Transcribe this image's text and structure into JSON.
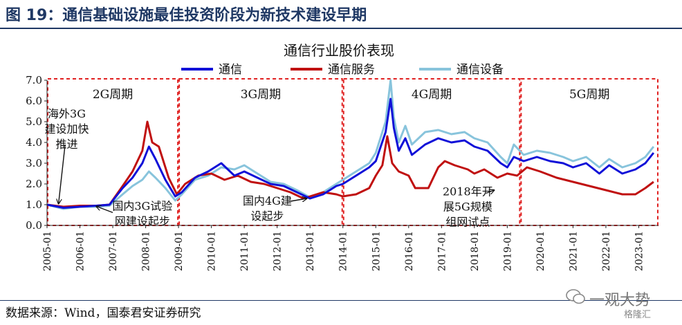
{
  "figure_title": "图 19：通信基础设施最佳投资阶段为新技术建设早期",
  "source": "数据来源：Wind，国泰君安证券研究",
  "watermark": {
    "text": "一观大势",
    "sub": "格隆汇"
  },
  "colors": {
    "blue": "#1010d8",
    "red": "#c01010",
    "light": "#88c4dc",
    "box": "#e02020",
    "header": "#1f3864"
  },
  "chart_data": {
    "type": "line",
    "title": "通信行业股价表现",
    "xlabel": "",
    "ylabel": "",
    "ylim": [
      0,
      7
    ],
    "yticks": [
      "0.0",
      "1.0",
      "2.0",
      "3.0",
      "4.0",
      "5.0",
      "6.0",
      "7.0"
    ],
    "xticks": [
      "2005-01",
      "2006-01",
      "2007-01",
      "2008-01",
      "2009-01",
      "2010-01",
      "2011-01",
      "2012-01",
      "2013-01",
      "2014-01",
      "2015-01",
      "2016-01",
      "2017-01",
      "2018-01",
      "2019-01",
      "2020-01",
      "2021-01",
      "2022-01",
      "2023-01"
    ],
    "legend": {
      "placement": "top-center"
    },
    "series": [
      {
        "name": "通信",
        "color": "#1010d8",
        "x": [
          2005.0,
          2005.5,
          2006.0,
          2006.5,
          2006.9,
          2007.3,
          2007.6,
          2007.9,
          2008.1,
          2008.3,
          2008.6,
          2008.9,
          2009.1,
          2009.5,
          2009.9,
          2010.3,
          2010.7,
          2011.0,
          2011.4,
          2011.8,
          2012.2,
          2012.6,
          2013.0,
          2013.4,
          2013.8,
          2014.0,
          2014.4,
          2014.8,
          2015.0,
          2015.3,
          2015.45,
          2015.55,
          2015.7,
          2015.9,
          2016.1,
          2016.5,
          2016.9,
          2017.3,
          2017.7,
          2018.0,
          2018.4,
          2018.8,
          2019.0,
          2019.2,
          2019.5,
          2019.9,
          2020.3,
          2020.7,
          2021.0,
          2021.4,
          2021.8,
          2022.1,
          2022.5,
          2022.9,
          2023.2,
          2023.45
        ],
        "values": [
          1.0,
          0.85,
          0.9,
          0.95,
          1.0,
          1.8,
          2.3,
          3.0,
          3.8,
          3.2,
          2.2,
          1.4,
          1.6,
          2.3,
          2.6,
          3.0,
          2.4,
          2.6,
          2.3,
          2.0,
          1.9,
          1.6,
          1.3,
          1.5,
          1.9,
          2.0,
          2.4,
          2.8,
          3.1,
          4.5,
          6.1,
          4.7,
          3.6,
          4.2,
          3.4,
          3.9,
          4.2,
          4.0,
          4.1,
          3.8,
          3.6,
          3.0,
          2.8,
          3.3,
          3.1,
          3.3,
          3.1,
          3.0,
          2.8,
          3.0,
          2.5,
          2.9,
          2.5,
          2.7,
          3.0,
          3.5
        ]
      },
      {
        "name": "通信服务",
        "color": "#c01010",
        "x": [
          2005.0,
          2005.5,
          2006.0,
          2006.5,
          2006.9,
          2007.3,
          2007.6,
          2007.9,
          2008.05,
          2008.2,
          2008.4,
          2008.7,
          2008.95,
          2009.2,
          2009.6,
          2010.0,
          2010.4,
          2010.8,
          2011.2,
          2011.6,
          2012.0,
          2012.4,
          2012.8,
          2013.0,
          2013.4,
          2013.8,
          2014.0,
          2014.4,
          2014.8,
          2015.0,
          2015.2,
          2015.35,
          2015.5,
          2015.7,
          2016.0,
          2016.2,
          2016.6,
          2016.9,
          2017.1,
          2017.4,
          2017.8,
          2018.0,
          2018.3,
          2018.7,
          2019.0,
          2019.3,
          2019.6,
          2020.0,
          2020.5,
          2021.0,
          2021.5,
          2022.0,
          2022.5,
          2022.9,
          2023.2,
          2023.45
        ],
        "values": [
          1.0,
          0.9,
          0.95,
          0.95,
          1.0,
          1.9,
          2.6,
          3.6,
          5.0,
          4.0,
          3.8,
          2.3,
          1.5,
          2.0,
          2.4,
          2.5,
          2.2,
          2.4,
          2.1,
          2.0,
          1.8,
          1.6,
          1.3,
          1.4,
          1.6,
          1.5,
          1.4,
          1.5,
          1.8,
          2.4,
          2.9,
          4.3,
          3.0,
          2.6,
          2.4,
          1.8,
          1.8,
          2.8,
          3.1,
          2.9,
          2.7,
          2.5,
          2.7,
          2.3,
          2.5,
          2.4,
          2.8,
          2.6,
          2.3,
          2.1,
          1.9,
          1.7,
          1.5,
          1.5,
          1.8,
          2.1
        ]
      },
      {
        "name": "通信设备",
        "color": "#88c4dc",
        "x": [
          2005.0,
          2005.5,
          2006.0,
          2006.5,
          2006.9,
          2007.3,
          2007.6,
          2007.9,
          2008.1,
          2008.3,
          2008.6,
          2008.9,
          2009.1,
          2009.5,
          2009.9,
          2010.3,
          2010.7,
          2011.0,
          2011.4,
          2011.8,
          2012.2,
          2012.6,
          2013.0,
          2013.4,
          2013.8,
          2014.0,
          2014.4,
          2014.8,
          2015.0,
          2015.3,
          2015.45,
          2015.55,
          2015.7,
          2015.9,
          2016.1,
          2016.5,
          2016.9,
          2017.3,
          2017.7,
          2018.0,
          2018.4,
          2018.8,
          2019.0,
          2019.2,
          2019.5,
          2019.9,
          2020.3,
          2020.7,
          2021.0,
          2021.4,
          2021.8,
          2022.1,
          2022.5,
          2022.9,
          2023.2,
          2023.45
        ],
        "values": [
          1.0,
          0.8,
          0.9,
          0.9,
          0.95,
          1.5,
          1.9,
          2.2,
          2.6,
          2.3,
          1.8,
          1.2,
          1.5,
          2.2,
          2.4,
          2.8,
          2.7,
          2.9,
          2.5,
          2.1,
          2.0,
          1.7,
          1.35,
          1.6,
          2.0,
          2.2,
          2.6,
          3.0,
          3.5,
          5.0,
          7.0,
          5.2,
          4.0,
          4.8,
          3.9,
          4.5,
          4.6,
          4.4,
          4.5,
          4.2,
          4.0,
          3.3,
          3.0,
          3.9,
          3.4,
          3.6,
          3.5,
          3.3,
          3.1,
          3.3,
          2.8,
          3.2,
          2.8,
          3.0,
          3.3,
          3.8
        ]
      }
    ],
    "periods": [
      {
        "label": "2G周期",
        "x0": 2005.0,
        "x1": 2009.0
      },
      {
        "label": "3G周期",
        "x0": 2009.0,
        "x1": 2014.0
      },
      {
        "label": "4G周期",
        "x0": 2014.0,
        "x1": 2019.4
      },
      {
        "label": "5G周期",
        "x0": 2019.4,
        "x1": 2023.6
      }
    ],
    "annotations": [
      {
        "lines": [
          "海外3G",
          "建设加快",
          "推进"
        ],
        "x": 2005.6,
        "y": 5.2,
        "ax": 2005.45,
        "ay": 0.95
      },
      {
        "lines": [
          "国内3G试验",
          "网建设起步"
        ],
        "x": 2007.9,
        "y": 0.75,
        "ax": 2006.45,
        "ay": 0.95
      },
      {
        "lines": [
          "国内4G建",
          "设起步"
        ],
        "x": 2011.7,
        "y": 1.0,
        "ax": 2013.0,
        "ay": 1.3
      },
      {
        "lines": [
          "2018年开",
          "展5G规模",
          "组网试点"
        ],
        "x": 2017.8,
        "y": 1.45,
        "ax": 2018.6,
        "ay": 1.55
      }
    ]
  }
}
